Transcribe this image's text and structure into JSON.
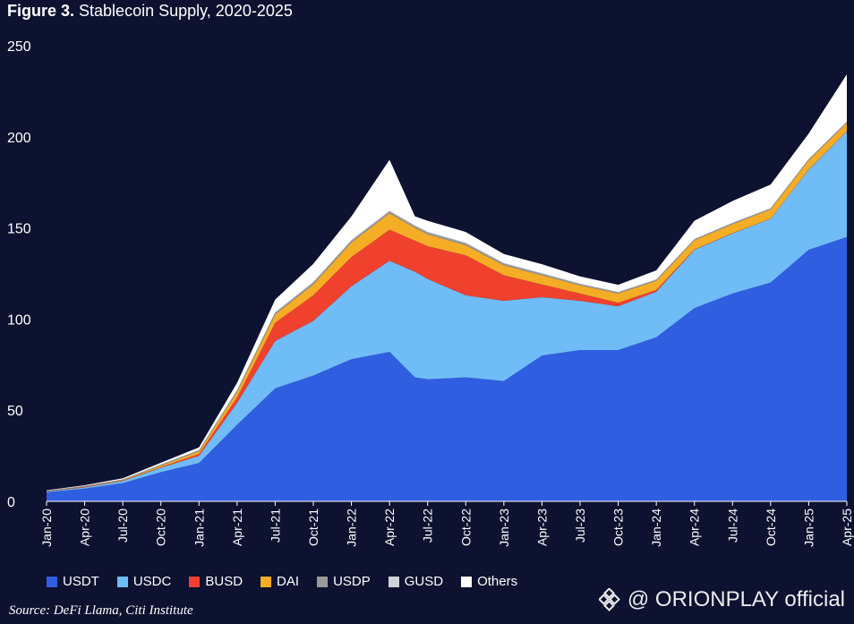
{
  "title": {
    "prefix": "Figure 3.",
    "text": "Stablecoin Supply, 2020-2025"
  },
  "source": "Source: DeFi Llama, Citi Institute",
  "watermark": {
    "text": "@ ORIONPLAY official",
    "logo": "binance-diamond-logo"
  },
  "colors": {
    "background": "#0d1230",
    "USDT": "#2f5fe0",
    "USDC": "#6fbcf7",
    "BUSD": "#f0412e",
    "DAI": "#f5ad25",
    "USDP": "#9a9a9a",
    "GUSD": "#cfd3d9",
    "Others": "#ffffff"
  },
  "chart_data": {
    "type": "area",
    "stacked": true,
    "title": "Stablecoin Supply, 2020-2025",
    "xlabel": "",
    "ylabel": "",
    "ylim": [
      0,
      250
    ],
    "yticks": [
      0,
      50,
      100,
      150,
      200,
      250
    ],
    "grid": false,
    "legend_position": "bottom",
    "x": [
      "Jan-20",
      "Apr-20",
      "Jul-20",
      "Oct-20",
      "Jan-21",
      "Apr-21",
      "Jul-21",
      "Oct-21",
      "Jan-22",
      "Apr-22",
      "Jun-22",
      "Jul-22",
      "Oct-22",
      "Jan-23",
      "Apr-23",
      "Jul-23",
      "Oct-23",
      "Jan-24",
      "Apr-24",
      "Jul-24",
      "Oct-24",
      "Jan-25",
      "Apr-25"
    ],
    "xticks": [
      "Jan-20",
      "Apr-20",
      "Jul-20",
      "Oct-20",
      "Jan-21",
      "Apr-21",
      "Jul-21",
      "Oct-21",
      "Jan-22",
      "Apr-22",
      "Jul-22",
      "Oct-22",
      "Jan-23",
      "Apr-23",
      "Jul-23",
      "Oct-23",
      "Jan-24",
      "Apr-24",
      "Jul-24",
      "Oct-24",
      "Jan-25",
      "Apr-25"
    ],
    "series": [
      {
        "name": "USDT",
        "values": [
          5,
          7,
          10,
          16,
          21,
          42,
          62,
          69,
          78,
          82,
          68,
          67,
          68,
          66,
          80,
          83,
          83,
          90,
          106,
          114,
          120,
          138,
          145
        ]
      },
      {
        "name": "USDC",
        "values": [
          0.4,
          0.7,
          1.1,
          2.5,
          4,
          12,
          26,
          30,
          40,
          50,
          58,
          55,
          45,
          44,
          32,
          27,
          24,
          25,
          32,
          33,
          35,
          44,
          58
        ]
      },
      {
        "name": "BUSD",
        "values": [
          0.1,
          0.2,
          0.2,
          0.3,
          1,
          3,
          10,
          14,
          16,
          17,
          17,
          18,
          22,
          14,
          7,
          4,
          2,
          1,
          0.2,
          0.1,
          0.1,
          0.1,
          0.1
        ]
      },
      {
        "name": "DAI",
        "values": [
          0.1,
          0.2,
          0.3,
          0.8,
          1.4,
          3,
          4.5,
          6,
          8,
          9,
          7,
          6.5,
          5.5,
          5.5,
          5,
          4.5,
          5,
          5,
          5,
          5,
          5,
          5,
          4.5
        ]
      },
      {
        "name": "USDP",
        "values": [
          0.2,
          0.3,
          0.4,
          0.5,
          0.6,
          0.8,
          0.9,
          1,
          1,
          1,
          1,
          1,
          1,
          0.9,
          0.8,
          0.6,
          0.6,
          0.5,
          0.5,
          0.5,
          0.5,
          0.5,
          0.5
        ]
      },
      {
        "name": "GUSD",
        "values": [
          0.05,
          0.05,
          0.05,
          0.1,
          0.1,
          0.2,
          0.3,
          0.3,
          0.3,
          0.4,
          0.4,
          0.4,
          0.3,
          0.3,
          0.3,
          0.3,
          0.2,
          0.2,
          0.2,
          0.2,
          0.2,
          0.2,
          0.2
        ]
      },
      {
        "name": "Others",
        "values": [
          0.2,
          0.4,
          0.6,
          1,
          1.5,
          4,
          7,
          10,
          13,
          28,
          5,
          6,
          6,
          5,
          5,
          4,
          4,
          5,
          10,
          12,
          13,
          14,
          26
        ]
      }
    ]
  }
}
